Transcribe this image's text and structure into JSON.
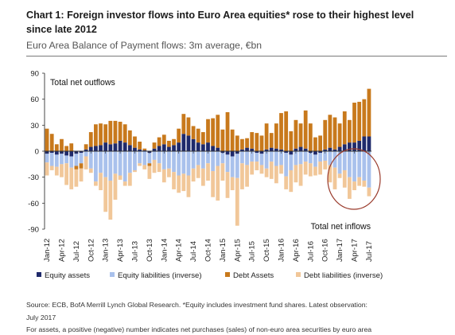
{
  "title": "Chart 1: Foreign investor flows into Euro Area equities* rose to their highest level since late 2012",
  "subtitle": "Euro Area Balance of Payment flows: 3m average, €bn",
  "source_lines": [
    "Source: ECB, BofA Merrill Lynch Global Research. *Equity includes investment fund shares. Latest observation:",
    "July 2017"
  ],
  "footnote": "For assets, a positive (negative) number indicates net purchases (sales) of non-euro area securities by euro area",
  "colors": {
    "equity_assets": "#1f2a6b",
    "equity_liabilities": "#a9c1ec",
    "debt_assets": "#c8791c",
    "debt_liabilities": "#f1c799",
    "circle": "#9a3b2c"
  },
  "chart_data": {
    "type": "bar",
    "stacked": true,
    "annotations": [
      "Total net outflows",
      "Total net inflows"
    ],
    "ylim": [
      -90,
      90
    ],
    "yticks": [
      90,
      60,
      30,
      0,
      -30,
      -60,
      -90
    ],
    "xticks": [
      "Jan-12",
      "Apr-12",
      "Jul-12",
      "Oct-12",
      "Jan-13",
      "Apr-13",
      "Jul-13",
      "Oct-13",
      "Jan-14",
      "Apr-14",
      "Jul-14",
      "Oct-14",
      "Jan-15",
      "Apr-15",
      "Jul-15",
      "Oct-15",
      "Jan-16",
      "Apr-16",
      "Jul-16",
      "Oct-16",
      "Jan-17",
      "Apr-17",
      "Jul-17"
    ],
    "months": [
      "Jan-12",
      "Feb-12",
      "Mar-12",
      "Apr-12",
      "May-12",
      "Jun-12",
      "Jul-12",
      "Aug-12",
      "Sep-12",
      "Oct-12",
      "Nov-12",
      "Dec-12",
      "Jan-13",
      "Feb-13",
      "Mar-13",
      "Apr-13",
      "May-13",
      "Jun-13",
      "Jul-13",
      "Aug-13",
      "Sep-13",
      "Oct-13",
      "Nov-13",
      "Dec-13",
      "Jan-14",
      "Feb-14",
      "Mar-14",
      "Apr-14",
      "May-14",
      "Jun-14",
      "Jul-14",
      "Aug-14",
      "Sep-14",
      "Oct-14",
      "Nov-14",
      "Dec-14",
      "Jan-15",
      "Feb-15",
      "Mar-15",
      "Apr-15",
      "May-15",
      "Jun-15",
      "Jul-15",
      "Aug-15",
      "Sep-15",
      "Oct-15",
      "Nov-15",
      "Dec-15",
      "Jan-16",
      "Feb-16",
      "Mar-16",
      "Apr-16",
      "May-16",
      "Jun-16",
      "Jul-16",
      "Aug-16",
      "Sep-16",
      "Oct-16",
      "Nov-16",
      "Dec-16",
      "Jan-17",
      "Feb-17",
      "Mar-17",
      "Apr-17",
      "May-17",
      "Jun-17",
      "Jul-17"
    ],
    "series": [
      {
        "name": "Equity assets",
        "key": "equity_assets",
        "values": [
          -3,
          -2,
          -4,
          -3,
          -5,
          -6,
          -3,
          -2,
          2,
          5,
          6,
          7,
          10,
          8,
          9,
          12,
          10,
          7,
          4,
          2,
          1,
          -2,
          3,
          6,
          8,
          5,
          7,
          10,
          20,
          18,
          14,
          10,
          8,
          10,
          6,
          4,
          -2,
          -4,
          -6,
          -3,
          2,
          4,
          3,
          -2,
          -3,
          2,
          4,
          3,
          2,
          -2,
          -4,
          3,
          5,
          3,
          -2,
          -4,
          -2,
          2,
          4,
          2,
          5,
          8,
          10,
          10,
          12,
          17,
          17
        ]
      },
      {
        "name": "Equity liabilities (inverse)",
        "key": "equity_liabilities",
        "values": [
          -10,
          -15,
          -14,
          -12,
          -9,
          -13,
          -14,
          -12,
          -6,
          -20,
          -35,
          -25,
          -30,
          -34,
          -26,
          -28,
          -35,
          -25,
          -22,
          -14,
          -16,
          -12,
          -10,
          -14,
          -21,
          -20,
          -24,
          -28,
          -26,
          -28,
          -20,
          -16,
          -20,
          -14,
          -23,
          -17,
          -12,
          -20,
          -24,
          -28,
          -14,
          -16,
          -12,
          -10,
          -13,
          -20,
          -12,
          -17,
          -16,
          -27,
          -18,
          -16,
          -15,
          -12,
          -12,
          -14,
          -10,
          -11,
          -16,
          -19,
          -26,
          -22,
          -30,
          -35,
          -30,
          -34,
          -42
        ]
      },
      {
        "name": "Debt Assets",
        "key": "debt_assets",
        "values": [
          26,
          20,
          8,
          14,
          6,
          9,
          -4,
          -6,
          6,
          17,
          25,
          25,
          21,
          27,
          26,
          22,
          21,
          17,
          13,
          9,
          2,
          -3,
          7,
          10,
          11,
          7,
          7,
          16,
          23,
          21,
          15,
          16,
          14,
          27,
          32,
          38,
          25,
          45,
          25,
          18,
          12,
          11,
          19,
          21,
          18,
          30,
          17,
          29,
          42,
          46,
          23,
          33,
          27,
          44,
          32,
          16,
          18,
          34,
          38,
          37,
          27,
          38,
          26,
          46,
          45,
          43,
          55
        ]
      },
      {
        "name": "Debt liabilities (inverse)",
        "key": "debt_liabilities",
        "values": [
          -15,
          -5,
          -10,
          -15,
          -25,
          -25,
          -20,
          -15,
          -15,
          -5,
          -5,
          -20,
          -40,
          -45,
          -30,
          -5,
          -5,
          -15,
          -2,
          -3,
          -5,
          -15,
          -15,
          -10,
          -15,
          -10,
          -20,
          -20,
          -20,
          -25,
          -15,
          -15,
          -20,
          -20,
          -30,
          -40,
          -20,
          -30,
          -15,
          -55,
          -30,
          -25,
          -15,
          -10,
          -10,
          -10,
          -20,
          -20,
          -10,
          -15,
          -25,
          -20,
          -25,
          -15,
          -15,
          -10,
          -15,
          -10,
          -20,
          -25,
          -5,
          -20,
          -25,
          -10,
          -10,
          -7,
          -10
        ]
      }
    ],
    "legend_position": "bottom"
  }
}
